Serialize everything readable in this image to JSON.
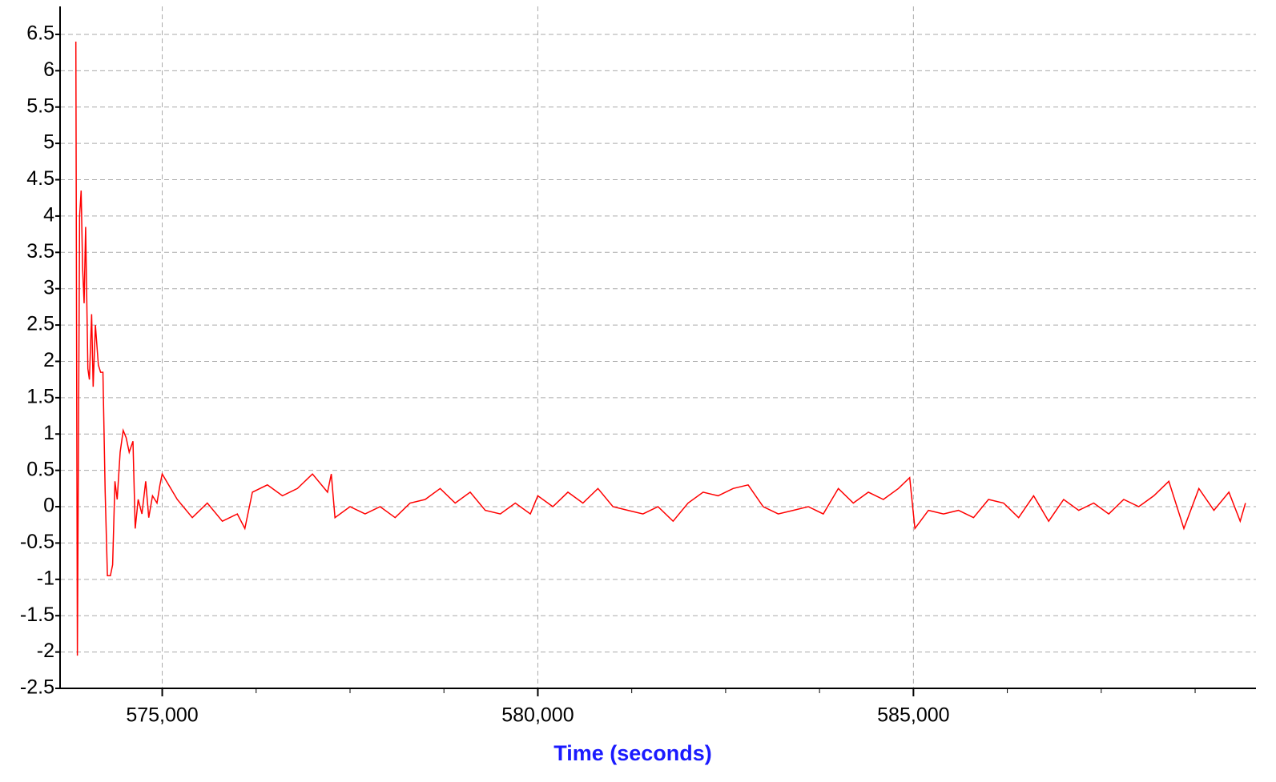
{
  "chart_data": {
    "type": "line",
    "xlabel": "Time (seconds)",
    "xlim": [
      573640,
      589560
    ],
    "ylim": [
      -2.5,
      6.885
    ],
    "xticks": [
      {
        "value": 575000,
        "label": "575,000"
      },
      {
        "value": 580000,
        "label": "580,000"
      },
      {
        "value": 585000,
        "label": "585,000"
      }
    ],
    "xminorticks": [
      576250,
      577500,
      578750,
      581250,
      582500,
      583750,
      586250,
      587500,
      588750
    ],
    "yticks": [
      -2.5,
      -2,
      -1.5,
      -1,
      -0.5,
      0,
      0.5,
      1,
      1.5,
      2,
      2.5,
      3,
      3.5,
      4,
      4.5,
      5,
      5.5,
      6,
      6.5
    ],
    "grid": true,
    "series": [
      {
        "color": "#ff0000",
        "x": [
          573850,
          573870,
          573900,
          573920,
          573940,
          573960,
          573980,
          574010,
          574030,
          574060,
          574080,
          574110,
          574150,
          574180,
          574210,
          574240,
          574270,
          574310,
          574340,
          574370,
          574400,
          574440,
          574480,
          574520,
          574560,
          574610,
          574640,
          574680,
          574730,
          574780,
          574820,
          574870,
          574930,
          574970,
          575000,
          575200,
          575400,
          575600,
          575800,
          576000,
          576100,
          576200,
          576400,
          576600,
          576800,
          577000,
          577200,
          577250,
          577300,
          577500,
          577700,
          577900,
          578100,
          578300,
          578500,
          578700,
          578900,
          579100,
          579300,
          579500,
          579700,
          579900,
          580000,
          580200,
          580400,
          580600,
          580800,
          581000,
          581200,
          581400,
          581600,
          581800,
          582000,
          582200,
          582400,
          582600,
          582800,
          583000,
          583200,
          583400,
          583600,
          583800,
          584000,
          584200,
          584400,
          584600,
          584800,
          584950,
          585020,
          585200,
          585400,
          585600,
          585800,
          586000,
          586200,
          586400,
          586600,
          586800,
          587000,
          587200,
          587400,
          587600,
          587800,
          588000,
          588200,
          588400,
          588600,
          588800,
          589000,
          589200,
          589350,
          589420
        ],
        "values": [
          6.4,
          -2.05,
          4.0,
          4.35,
          3.3,
          2.8,
          3.85,
          1.9,
          1.75,
          2.65,
          1.65,
          2.5,
          1.95,
          1.85,
          1.85,
          0.2,
          -0.95,
          -0.95,
          -0.8,
          0.35,
          0.1,
          0.75,
          1.05,
          0.95,
          0.75,
          0.9,
          -0.3,
          0.1,
          -0.1,
          0.35,
          -0.15,
          0.15,
          0.05,
          0.3,
          0.45,
          0.1,
          -0.15,
          0.05,
          -0.2,
          -0.1,
          -0.3,
          0.2,
          0.3,
          0.15,
          0.25,
          0.45,
          0.2,
          0.45,
          -0.15,
          0.0,
          -0.1,
          0.0,
          -0.15,
          0.05,
          0.1,
          0.25,
          0.05,
          0.2,
          -0.05,
          -0.1,
          0.05,
          -0.1,
          0.15,
          0.0,
          0.2,
          0.05,
          0.25,
          0.0,
          -0.05,
          -0.1,
          0.0,
          -0.2,
          0.05,
          0.2,
          0.15,
          0.25,
          0.3,
          0.0,
          -0.1,
          -0.05,
          0.0,
          -0.1,
          0.25,
          0.05,
          0.2,
          0.1,
          0.25,
          0.4,
          -0.3,
          -0.05,
          -0.1,
          -0.05,
          -0.15,
          0.1,
          0.05,
          -0.15,
          0.15,
          -0.2,
          0.1,
          -0.05,
          0.05,
          -0.1,
          0.1,
          0.0,
          0.15,
          0.35,
          -0.3,
          0.25,
          -0.05,
          0.2,
          -0.2,
          0.05
        ]
      }
    ]
  }
}
